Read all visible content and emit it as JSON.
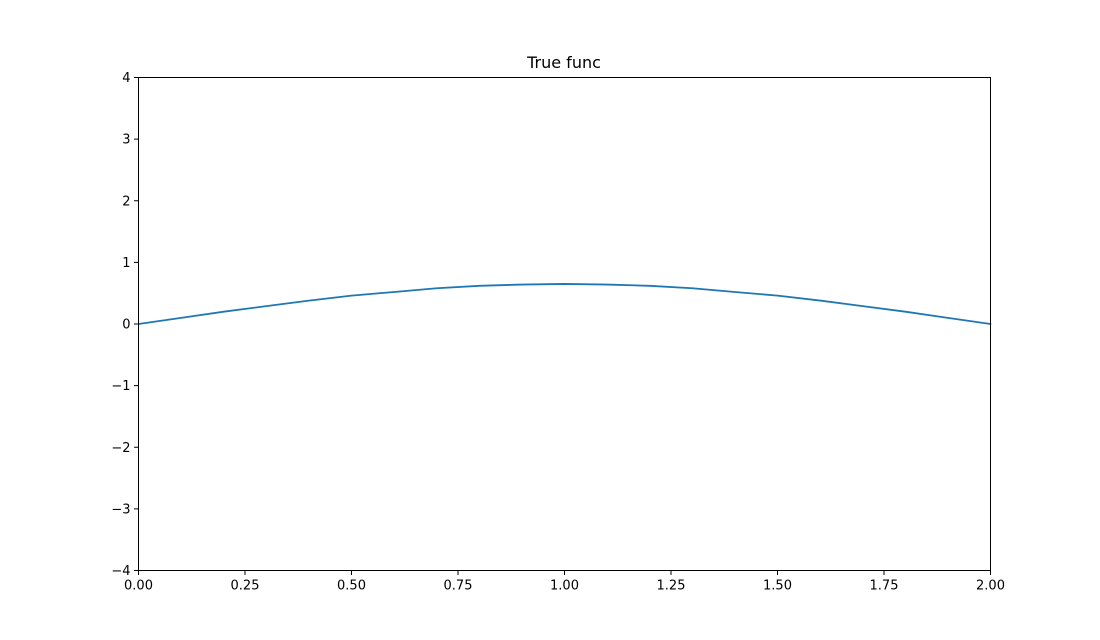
{
  "chart_data": {
    "type": "line",
    "title": "True func",
    "xlabel": "",
    "ylabel": "",
    "xlim": [
      0,
      2
    ],
    "ylim": [
      -4,
      4
    ],
    "x_ticks": [
      0.0,
      0.25,
      0.5,
      0.75,
      1.0,
      1.25,
      1.5,
      1.75,
      2.0
    ],
    "x_tick_labels": [
      "0.00",
      "0.25",
      "0.50",
      "0.75",
      "1.00",
      "1.25",
      "1.50",
      "1.75",
      "2.00"
    ],
    "y_ticks": [
      -4,
      -3,
      -2,
      -1,
      0,
      1,
      2,
      3,
      4
    ],
    "y_tick_labels": [
      "−4",
      "−3",
      "−2",
      "−1",
      "0",
      "1",
      "2",
      "3",
      "4"
    ],
    "grid": false,
    "legend": "none",
    "series": [
      {
        "color": "#1f77b4",
        "x": [
          0.0,
          0.1,
          0.2,
          0.3,
          0.4,
          0.5,
          0.6,
          0.7,
          0.8,
          0.9,
          1.0,
          1.1,
          1.2,
          1.3,
          1.4,
          1.5,
          1.6,
          1.7,
          1.8,
          1.9,
          2.0
        ],
        "y": [
          0.0,
          0.1,
          0.2,
          0.29,
          0.38,
          0.46,
          0.52,
          0.58,
          0.62,
          0.64,
          0.65,
          0.64,
          0.62,
          0.58,
          0.52,
          0.46,
          0.38,
          0.29,
          0.2,
          0.1,
          0.0
        ]
      }
    ]
  }
}
